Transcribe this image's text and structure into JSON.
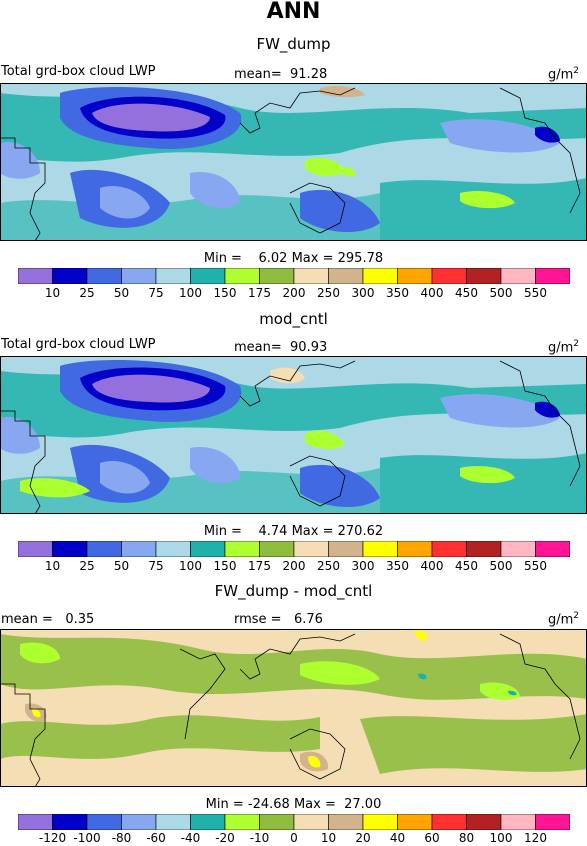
{
  "title": "ANN",
  "units": "g/m",
  "units_exp": "2",
  "colors": {
    "levels": [
      "#9370db",
      "#0000c8",
      "#4169e1",
      "#87a8f0",
      "#add8e6",
      "#20b2aa",
      "#adff2f",
      "#8fbc3f",
      "#f5deb3",
      "#d2b48c",
      "#ffff00",
      "#ffa500",
      "#ff3030",
      "#b22222",
      "#ffb6c1",
      "#ff1493"
    ],
    "diff_levels": [
      "#9370db",
      "#0000c8",
      "#4169e1",
      "#87a8f0",
      "#add8e6",
      "#20b2aa",
      "#adff2f",
      "#8fbc3f",
      "#f5deb3",
      "#d2b48c",
      "#ffff00",
      "#ffa500",
      "#ff3030",
      "#b22222",
      "#ffb6c1",
      "#ff1493"
    ]
  },
  "panels": [
    {
      "title": "FW_dump",
      "field_label": "Total grd-box cloud LWP",
      "mean_label": "mean=",
      "mean_value": "91.28",
      "min_label": "Min =",
      "min_value": "6.02",
      "max_label": "Max =",
      "max_value": "295.78",
      "ticks": [
        "10",
        "25",
        "50",
        "75",
        "100",
        "150",
        "175",
        "200",
        "250",
        "300",
        "350",
        "400",
        "450",
        "500",
        "550"
      ]
    },
    {
      "title": "mod_cntl",
      "field_label": "Total grd-box cloud LWP",
      "mean_label": "mean=",
      "mean_value": "90.93",
      "min_label": "Min =",
      "min_value": "4.74",
      "max_label": "Max =",
      "max_value": "270.62",
      "ticks": [
        "10",
        "25",
        "50",
        "75",
        "100",
        "150",
        "175",
        "200",
        "250",
        "300",
        "350",
        "400",
        "450",
        "500",
        "550"
      ]
    },
    {
      "title": "FW_dump - mod_cntl",
      "mean_label": "mean =",
      "mean_value": "0.35",
      "rmse_label": "rmse =",
      "rmse_value": "6.76",
      "min_label": "Min =",
      "min_value": "-24.68",
      "max_label": "Max =",
      "max_value": "27.00",
      "ticks": [
        "-120",
        "-100",
        "-80",
        "-60",
        "-40",
        "-20",
        "-10",
        "0",
        "10",
        "20",
        "40",
        "60",
        "80",
        "100",
        "120"
      ]
    }
  ]
}
